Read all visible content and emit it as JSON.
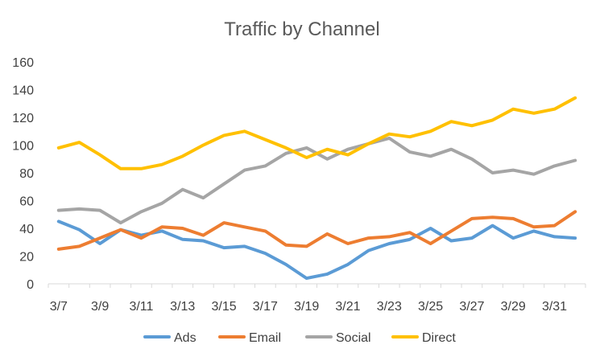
{
  "chart_data": {
    "type": "line",
    "title": "Traffic by Channel",
    "xlabel": "",
    "ylabel": "",
    "ylim": [
      0,
      160
    ],
    "yticks": [
      0,
      20,
      40,
      60,
      80,
      100,
      120,
      140,
      160
    ],
    "grid": false,
    "legend_position": "bottom",
    "categories": [
      "3/7",
      "3/8",
      "3/9",
      "3/10",
      "3/11",
      "3/12",
      "3/13",
      "3/14",
      "3/15",
      "3/16",
      "3/17",
      "3/18",
      "3/19",
      "3/20",
      "3/21",
      "3/22",
      "3/23",
      "3/24",
      "3/25",
      "3/26",
      "3/27",
      "3/28",
      "3/29",
      "3/30",
      "3/31",
      "4/1"
    ],
    "x_tick_labels": [
      "3/7",
      "3/9",
      "3/11",
      "3/13",
      "3/15",
      "3/17",
      "3/19",
      "3/21",
      "3/23",
      "3/25",
      "3/27",
      "3/29",
      "3/31"
    ],
    "series": [
      {
        "name": "Ads",
        "color": "#5B9BD5",
        "values": [
          45,
          39,
          29,
          39,
          35,
          38,
          32,
          31,
          26,
          27,
          22,
          14,
          4,
          7,
          14,
          24,
          29,
          32,
          40,
          31,
          33,
          42,
          33,
          38,
          34,
          33
        ]
      },
      {
        "name": "Email",
        "color": "#ED7D31",
        "values": [
          25,
          27,
          33,
          39,
          33,
          41,
          40,
          35,
          44,
          41,
          38,
          28,
          27,
          36,
          29,
          33,
          34,
          37,
          29,
          38,
          47,
          48,
          47,
          41,
          42,
          52
        ]
      },
      {
        "name": "Social",
        "color": "#A5A5A5",
        "values": [
          53,
          54,
          53,
          44,
          52,
          58,
          68,
          62,
          72,
          82,
          85,
          94,
          98,
          90,
          97,
          101,
          105,
          95,
          92,
          97,
          90,
          80,
          82,
          79,
          85,
          89
        ]
      },
      {
        "name": "Direct",
        "color": "#FFC000",
        "values": [
          98,
          102,
          93,
          83,
          83,
          86,
          92,
          100,
          107,
          110,
          104,
          98,
          91,
          97,
          93,
          101,
          108,
          106,
          110,
          117,
          114,
          118,
          126,
          123,
          126,
          134
        ]
      }
    ]
  }
}
